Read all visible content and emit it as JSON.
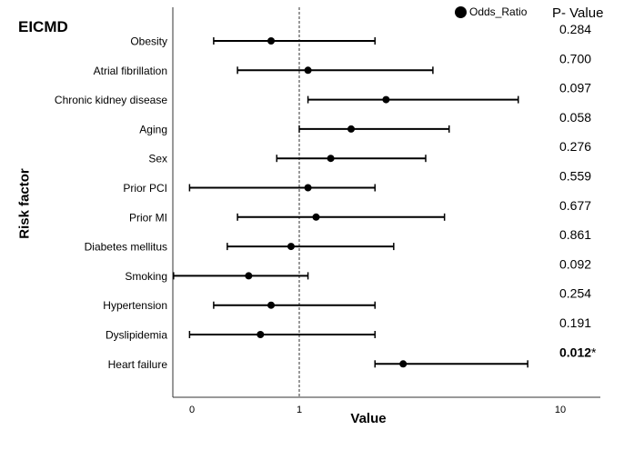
{
  "panel_title": "EICMD",
  "chart_data": {
    "type": "forest",
    "ylabel": "Risk factor",
    "xlabel": "Value",
    "x_scale": "log",
    "x_ticks": [
      "0",
      "1",
      "10"
    ],
    "reference_line": 1,
    "legend": {
      "label": "Odds_Ratio",
      "placement": "top-right"
    },
    "p_header": "P- Value",
    "rows": [
      {
        "label": "Obesity",
        "or": 0.78,
        "lo": 0.47,
        "hi": 1.95,
        "p": "0.284",
        "sig": ""
      },
      {
        "label": "Atrial fibrillation",
        "or": 1.08,
        "lo": 0.58,
        "hi": 3.25,
        "p": "0.700",
        "sig": ""
      },
      {
        "label": "Chronic kidney disease",
        "or": 2.15,
        "lo": 1.08,
        "hi": 6.9,
        "p": "0.097",
        "sig": ""
      },
      {
        "label": "Aging",
        "or": 1.58,
        "lo": 1.0,
        "hi": 3.75,
        "p": "0.058",
        "sig": ""
      },
      {
        "label": "Sex",
        "or": 1.32,
        "lo": 0.82,
        "hi": 3.05,
        "p": "0.276",
        "sig": ""
      },
      {
        "label": "Prior PCI",
        "or": 1.08,
        "lo": 0.38,
        "hi": 1.95,
        "p": "0.559",
        "sig": ""
      },
      {
        "label": "Prior MI",
        "or": 1.16,
        "lo": 0.58,
        "hi": 3.6,
        "p": "0.677",
        "sig": ""
      },
      {
        "label": "Diabetes mellitus",
        "or": 0.93,
        "lo": 0.53,
        "hi": 2.3,
        "p": "0.861",
        "sig": ""
      },
      {
        "label": "Smoking",
        "or": 0.64,
        "lo": 0.33,
        "hi": 1.08,
        "p": "0.092",
        "sig": ""
      },
      {
        "label": "Hypertension",
        "or": 0.78,
        "lo": 0.47,
        "hi": 1.95,
        "p": "0.254",
        "sig": ""
      },
      {
        "label": "Dyslipidemia",
        "or": 0.71,
        "lo": 0.38,
        "hi": 1.95,
        "p": "0.191",
        "sig": ""
      },
      {
        "label": "Heart failure",
        "or": 2.5,
        "lo": 1.95,
        "hi": 7.5,
        "p": "0.012",
        "sig": "*"
      }
    ]
  }
}
